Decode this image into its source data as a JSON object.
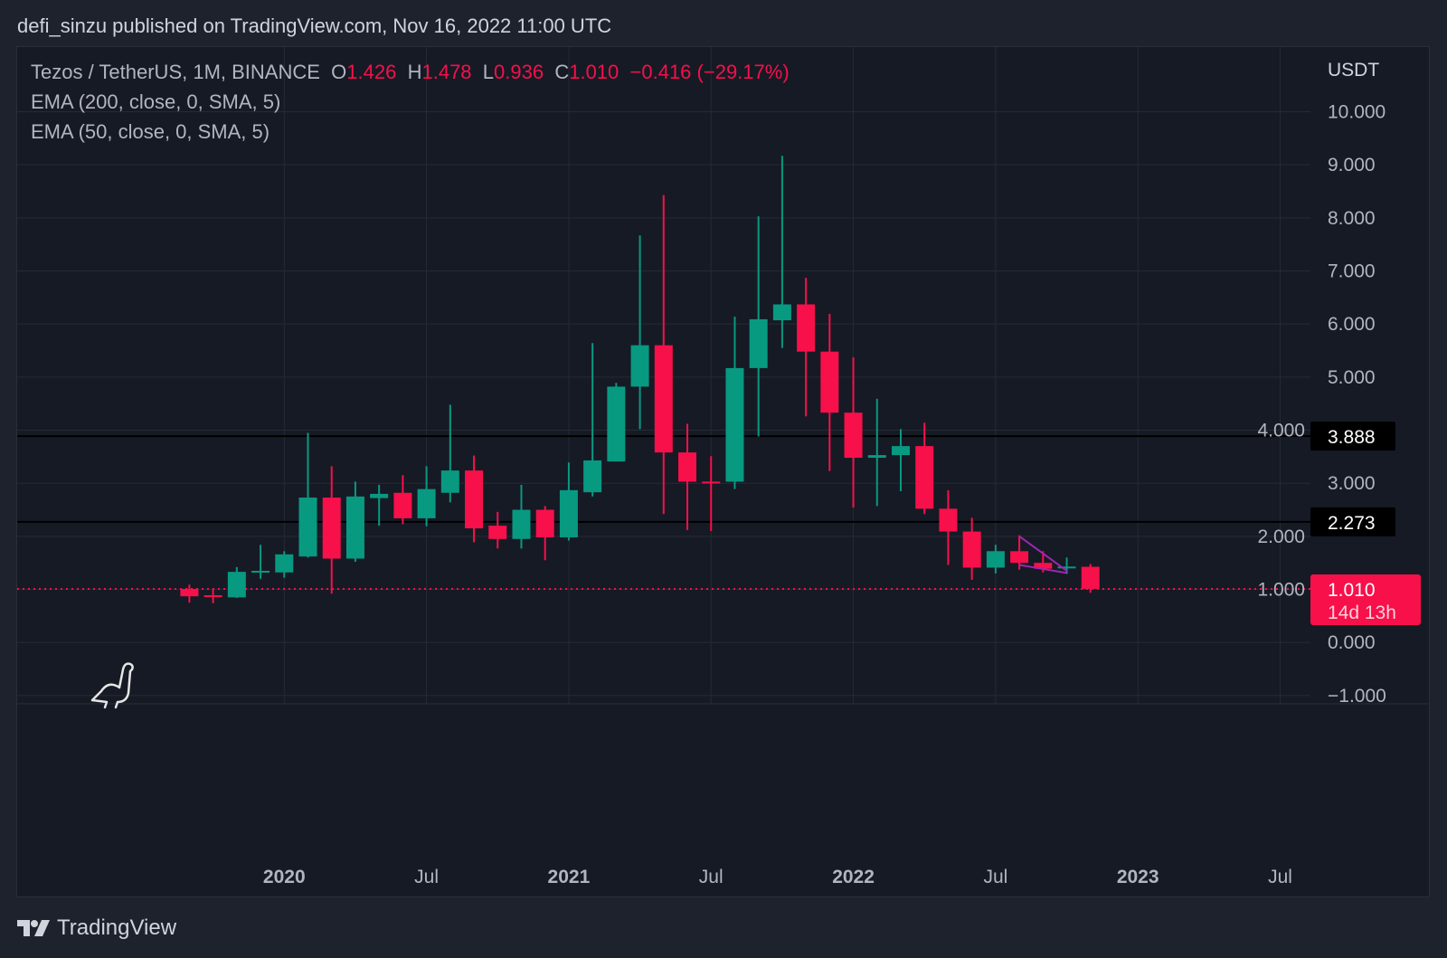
{
  "header": {
    "published": "defi_sinzu published on TradingView.com, Nov 16, 2022 11:00 UTC"
  },
  "legend": {
    "symbol": "Tezos / TetherUS, 1M, BINANCE",
    "o_label": "O",
    "o_value": "1.426",
    "h_label": "H",
    "h_value": "1.478",
    "l_label": "L",
    "l_value": "0.936",
    "c_label": "C",
    "c_value": "1.010",
    "change": "−0.416 (−29.17%)",
    "ema1": "EMA (200, close, 0, SMA, 5)",
    "ema2": "EMA (50, close, 0, SMA, 5)"
  },
  "footer": {
    "brand": "TradingView"
  },
  "colors": {
    "up": "#089981",
    "down": "#f7104a",
    "bg": "#161a25",
    "grid": "#252a36",
    "drawing": "#9c27b0"
  },
  "chart_data": {
    "type": "candlestick",
    "title": "Tezos / TetherUS, 1M, BINANCE",
    "currency": "USDT",
    "ylim": [
      -1.2,
      11.2
    ],
    "y_ticks": [
      "10.000",
      "9.000",
      "8.000",
      "7.000",
      "6.000",
      "5.000",
      "4.000",
      "3.000",
      "2.000",
      "1.000",
      "0.000",
      "−1.000"
    ],
    "y_tick_values": [
      10,
      9,
      8,
      7,
      6,
      5,
      4,
      3,
      2,
      1,
      0,
      -1
    ],
    "x_ticks": [
      {
        "label": "2020",
        "month_index": 4,
        "bold": true
      },
      {
        "label": "Jul",
        "month_index": 10,
        "bold": false
      },
      {
        "label": "2021",
        "month_index": 16,
        "bold": true
      },
      {
        "label": "Jul",
        "month_index": 22,
        "bold": false
      },
      {
        "label": "2022",
        "month_index": 28,
        "bold": true
      },
      {
        "label": "Jul",
        "month_index": 34,
        "bold": false
      },
      {
        "label": "2023",
        "month_index": 40,
        "bold": true
      },
      {
        "label": "Jul",
        "month_index": 46,
        "bold": false
      }
    ],
    "candles": [
      {
        "t": "2019-09",
        "o": 1.01,
        "h": 1.09,
        "l": 0.75,
        "c": 0.87
      },
      {
        "t": "2019-10",
        "o": 0.89,
        "h": 1.01,
        "l": 0.74,
        "c": 0.88
      },
      {
        "t": "2019-11",
        "o": 0.85,
        "h": 1.42,
        "l": 0.84,
        "c": 1.33
      },
      {
        "t": "2019-12",
        "o": 1.33,
        "h": 1.84,
        "l": 1.2,
        "c": 1.35
      },
      {
        "t": "2020-01",
        "o": 1.32,
        "h": 1.72,
        "l": 1.22,
        "c": 1.66
      },
      {
        "t": "2020-02",
        "o": 1.62,
        "h": 3.95,
        "l": 1.6,
        "c": 2.73
      },
      {
        "t": "2020-03",
        "o": 2.73,
        "h": 3.32,
        "l": 0.92,
        "c": 1.58
      },
      {
        "t": "2020-04",
        "o": 1.58,
        "h": 3.03,
        "l": 1.52,
        "c": 2.75
      },
      {
        "t": "2020-05",
        "o": 2.72,
        "h": 2.97,
        "l": 2.2,
        "c": 2.8
      },
      {
        "t": "2020-06",
        "o": 2.82,
        "h": 3.15,
        "l": 2.23,
        "c": 2.34
      },
      {
        "t": "2020-07",
        "o": 2.34,
        "h": 3.32,
        "l": 2.19,
        "c": 2.89
      },
      {
        "t": "2020-08",
        "o": 2.82,
        "h": 4.48,
        "l": 2.64,
        "c": 3.24
      },
      {
        "t": "2020-09",
        "o": 3.24,
        "h": 3.52,
        "l": 1.89,
        "c": 2.15
      },
      {
        "t": "2020-10",
        "o": 2.2,
        "h": 2.46,
        "l": 1.77,
        "c": 1.95
      },
      {
        "t": "2020-11",
        "o": 1.95,
        "h": 2.97,
        "l": 1.77,
        "c": 2.5
      },
      {
        "t": "2020-12",
        "o": 2.5,
        "h": 2.57,
        "l": 1.55,
        "c": 1.98
      },
      {
        "t": "2021-01",
        "o": 1.98,
        "h": 3.39,
        "l": 1.92,
        "c": 2.87
      },
      {
        "t": "2021-02",
        "o": 2.83,
        "h": 5.64,
        "l": 2.75,
        "c": 3.43
      },
      {
        "t": "2021-03",
        "o": 3.41,
        "h": 4.89,
        "l": 3.41,
        "c": 4.82
      },
      {
        "t": "2021-04",
        "o": 4.82,
        "h": 7.67,
        "l": 4.02,
        "c": 5.6
      },
      {
        "t": "2021-05",
        "o": 5.6,
        "h": 8.43,
        "l": 2.42,
        "c": 3.58
      },
      {
        "t": "2021-06",
        "o": 3.58,
        "h": 4.12,
        "l": 2.12,
        "c": 3.03
      },
      {
        "t": "2021-07",
        "o": 3.03,
        "h": 3.51,
        "l": 2.1,
        "c": 3.02
      },
      {
        "t": "2021-08",
        "o": 3.03,
        "h": 6.14,
        "l": 2.89,
        "c": 5.17
      },
      {
        "t": "2021-09",
        "o": 5.17,
        "h": 8.03,
        "l": 3.88,
        "c": 6.09
      },
      {
        "t": "2021-10",
        "o": 6.07,
        "h": 9.17,
        "l": 5.55,
        "c": 6.37
      },
      {
        "t": "2021-11",
        "o": 6.37,
        "h": 6.87,
        "l": 4.26,
        "c": 5.48
      },
      {
        "t": "2021-12",
        "o": 5.48,
        "h": 6.19,
        "l": 3.23,
        "c": 4.33
      },
      {
        "t": "2022-01",
        "o": 4.33,
        "h": 5.37,
        "l": 2.54,
        "c": 3.48
      },
      {
        "t": "2022-02",
        "o": 3.48,
        "h": 4.59,
        "l": 2.57,
        "c": 3.53
      },
      {
        "t": "2022-03",
        "o": 3.53,
        "h": 4.02,
        "l": 2.85,
        "c": 3.7
      },
      {
        "t": "2022-04",
        "o": 3.7,
        "h": 4.14,
        "l": 2.42,
        "c": 2.52
      },
      {
        "t": "2022-05",
        "o": 2.52,
        "h": 2.87,
        "l": 1.46,
        "c": 2.09
      },
      {
        "t": "2022-06",
        "o": 2.09,
        "h": 2.35,
        "l": 1.18,
        "c": 1.41
      },
      {
        "t": "2022-07",
        "o": 1.41,
        "h": 1.84,
        "l": 1.3,
        "c": 1.72
      },
      {
        "t": "2022-08",
        "o": 1.72,
        "h": 2.02,
        "l": 1.37,
        "c": 1.5
      },
      {
        "t": "2022-09",
        "o": 1.5,
        "h": 1.72,
        "l": 1.32,
        "c": 1.39
      },
      {
        "t": "2022-10",
        "o": 1.41,
        "h": 1.6,
        "l": 1.29,
        "c": 1.43
      },
      {
        "t": "2022-11",
        "o": 1.426,
        "h": 1.478,
        "l": 0.936,
        "c": 1.01
      }
    ],
    "horizontal_lines": [
      {
        "price": 3.888,
        "label": "3.888"
      },
      {
        "price": 2.273,
        "label": "2.273"
      }
    ],
    "last_price": {
      "price": 1.01,
      "label": "1.010",
      "countdown": "14d 13h"
    },
    "drawing_lines": [
      {
        "from": {
          "month_index": 35,
          "price": 2.0
        },
        "to": {
          "month_index": 37,
          "price": 1.35
        }
      },
      {
        "from": {
          "month_index": 35,
          "price": 1.46
        },
        "to": {
          "month_index": 37,
          "price": 1.31
        }
      }
    ]
  }
}
